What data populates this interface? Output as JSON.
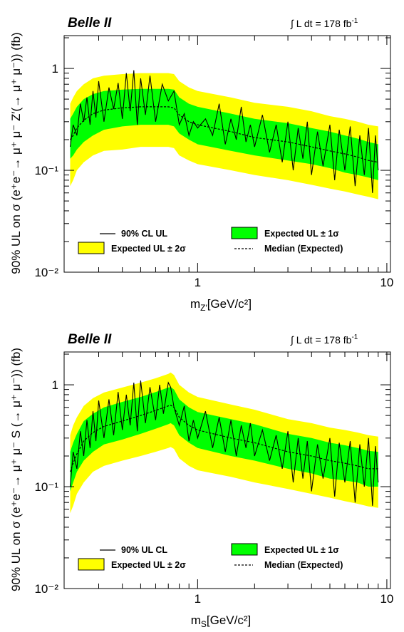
{
  "chart_data": [
    {
      "type": "area",
      "experiment_label": "Belle II",
      "luminosity_label": "∫ L dt = 178 fb",
      "luminosity_exponent": "-1",
      "ylabel": "90% UL on σ (e⁺e⁻→ μ⁺ μ⁻ Z′(→ μ⁺ μ⁻)) (fb)",
      "xlabel_main": "m",
      "xlabel_sub": "Z′",
      "xlabel_units": "[GeV/c²]",
      "x_scale": "log",
      "y_scale": "log",
      "xlim": [
        0.212,
        9.0
      ],
      "ylim": [
        0.01,
        2.0
      ],
      "x_ticks": [
        {
          "value": 1,
          "label": "1"
        },
        {
          "value": 10,
          "label": "10"
        }
      ],
      "y_ticks": [
        {
          "value": 0.01,
          "label": "10⁻²"
        },
        {
          "value": 0.1,
          "label": "10⁻¹"
        },
        {
          "value": 1,
          "label": "1"
        }
      ],
      "legend": {
        "placement": "bottom",
        "entries": [
          {
            "key": "observed",
            "label": "90% CL UL",
            "style": "line"
          },
          {
            "key": "pm1",
            "label": "Expected UL ± 1σ",
            "style": "band",
            "color": "#00ff00"
          },
          {
            "key": "pm2",
            "label": "Expected UL ± 2σ",
            "style": "band",
            "color": "#ffff00"
          },
          {
            "key": "median",
            "label": "Median (Expected)",
            "style": "dashed"
          }
        ]
      },
      "colors": {
        "band_2sigma": "#ffff00",
        "band_1sigma": "#00ff00",
        "observed": "#000000",
        "median": "#000000"
      },
      "expected": {
        "x": [
          0.212,
          0.22,
          0.23,
          0.25,
          0.28,
          0.32,
          0.4,
          0.5,
          0.6,
          0.7,
          0.75,
          0.8,
          0.9,
          1.0,
          1.5,
          2.0,
          3.0,
          4.0,
          5.0,
          6.0,
          7.0,
          8.0,
          9.0
        ],
        "median": [
          0.2,
          0.22,
          0.26,
          0.31,
          0.36,
          0.39,
          0.41,
          0.42,
          0.42,
          0.42,
          0.41,
          0.35,
          0.3,
          0.28,
          0.24,
          0.21,
          0.19,
          0.17,
          0.155,
          0.145,
          0.135,
          0.125,
          0.12
        ],
        "minus1": [
          0.13,
          0.14,
          0.16,
          0.19,
          0.22,
          0.25,
          0.27,
          0.28,
          0.28,
          0.28,
          0.27,
          0.23,
          0.2,
          0.18,
          0.155,
          0.14,
          0.125,
          0.115,
          0.105,
          0.095,
          0.09,
          0.085,
          0.08
        ],
        "plus1": [
          0.32,
          0.36,
          0.42,
          0.5,
          0.56,
          0.6,
          0.62,
          0.63,
          0.63,
          0.63,
          0.62,
          0.52,
          0.45,
          0.42,
          0.36,
          0.32,
          0.29,
          0.26,
          0.24,
          0.22,
          0.205,
          0.19,
          0.18
        ],
        "minus2": [
          0.07,
          0.08,
          0.1,
          0.12,
          0.14,
          0.155,
          0.16,
          0.17,
          0.17,
          0.17,
          0.165,
          0.14,
          0.125,
          0.115,
          0.1,
          0.09,
          0.08,
          0.072,
          0.066,
          0.062,
          0.058,
          0.055,
          0.052
        ],
        "plus2": [
          0.45,
          0.52,
          0.6,
          0.7,
          0.8,
          0.85,
          0.88,
          0.9,
          0.9,
          0.9,
          0.88,
          0.75,
          0.65,
          0.6,
          0.52,
          0.46,
          0.42,
          0.38,
          0.34,
          0.32,
          0.3,
          0.28,
          0.27
        ]
      },
      "observed": {
        "x": [
          0.212,
          0.22,
          0.23,
          0.24,
          0.25,
          0.26,
          0.27,
          0.28,
          0.29,
          0.3,
          0.32,
          0.34,
          0.36,
          0.38,
          0.4,
          0.42,
          0.44,
          0.46,
          0.48,
          0.5,
          0.53,
          0.56,
          0.6,
          0.65,
          0.7,
          0.75,
          0.8,
          0.85,
          0.9,
          0.95,
          1.0,
          1.1,
          1.2,
          1.3,
          1.4,
          1.5,
          1.6,
          1.7,
          1.8,
          1.9,
          2.0,
          2.2,
          2.4,
          2.6,
          2.8,
          3.0,
          3.2,
          3.4,
          3.6,
          3.8,
          4.0,
          4.3,
          4.6,
          5.0,
          5.3,
          5.6,
          6.0,
          6.4,
          6.8,
          7.2,
          7.6,
          8.0,
          8.4,
          8.7,
          9.0
        ],
        "y": [
          0.17,
          0.28,
          0.22,
          0.45,
          0.3,
          0.52,
          0.28,
          0.6,
          0.33,
          0.75,
          0.3,
          0.65,
          0.4,
          0.72,
          0.32,
          0.9,
          0.38,
          0.96,
          0.28,
          0.8,
          0.35,
          0.85,
          0.3,
          0.7,
          0.48,
          0.6,
          0.28,
          0.36,
          0.22,
          0.3,
          0.26,
          0.32,
          0.22,
          0.45,
          0.18,
          0.32,
          0.2,
          0.42,
          0.19,
          0.28,
          0.17,
          0.35,
          0.15,
          0.28,
          0.12,
          0.3,
          0.1,
          0.26,
          0.13,
          0.3,
          0.09,
          0.24,
          0.11,
          0.28,
          0.08,
          0.25,
          0.1,
          0.27,
          0.07,
          0.22,
          0.09,
          0.26,
          0.06,
          0.22,
          0.1
        ]
      }
    },
    {
      "type": "area",
      "experiment_label": "Belle II",
      "luminosity_label": "∫ L dt = 178 fb",
      "luminosity_exponent": "-1",
      "ylabel": "90% UL on σ (e⁺e⁻→ μ⁺ μ⁻ S (→ μ⁺ μ⁻)) (fb)",
      "xlabel_main": "m",
      "xlabel_sub": "S",
      "xlabel_units": "[GeV/c²]",
      "x_scale": "log",
      "y_scale": "log",
      "xlim": [
        0.212,
        9.0
      ],
      "ylim": [
        0.01,
        2.0
      ],
      "x_ticks": [
        {
          "value": 1,
          "label": "1"
        },
        {
          "value": 10,
          "label": "10"
        }
      ],
      "y_ticks": [
        {
          "value": 0.01,
          "label": "10⁻²"
        },
        {
          "value": 0.1,
          "label": "10⁻¹"
        },
        {
          "value": 1,
          "label": "1"
        }
      ],
      "legend": {
        "placement": "bottom",
        "entries": [
          {
            "key": "observed",
            "label": "90% UL CL",
            "style": "line"
          },
          {
            "key": "pm1",
            "label": "Expected UL ± 1σ",
            "style": "band",
            "color": "#00ff00"
          },
          {
            "key": "pm2",
            "label": "Expected UL ± 2σ",
            "style": "band",
            "color": "#ffff00"
          },
          {
            "key": "median",
            "label": "Median (Expected)",
            "style": "dashed"
          }
        ]
      },
      "colors": {
        "band_2sigma": "#ffff00",
        "band_1sigma": "#00ff00",
        "observed": "#000000",
        "median": "#000000"
      },
      "expected": {
        "x": [
          0.212,
          0.22,
          0.23,
          0.25,
          0.28,
          0.32,
          0.4,
          0.5,
          0.6,
          0.7,
          0.72,
          0.75,
          0.8,
          0.9,
          1.0,
          1.5,
          2.0,
          3.0,
          4.0,
          5.0,
          6.0,
          7.0,
          8.0,
          9.0
        ],
        "median": [
          0.14,
          0.17,
          0.21,
          0.28,
          0.34,
          0.39,
          0.44,
          0.5,
          0.56,
          0.62,
          0.63,
          0.6,
          0.48,
          0.4,
          0.36,
          0.3,
          0.27,
          0.22,
          0.2,
          0.18,
          0.17,
          0.16,
          0.15,
          0.15
        ],
        "minus1": [
          0.09,
          0.11,
          0.14,
          0.18,
          0.22,
          0.26,
          0.29,
          0.33,
          0.37,
          0.41,
          0.42,
          0.4,
          0.32,
          0.27,
          0.24,
          0.2,
          0.18,
          0.15,
          0.135,
          0.12,
          0.115,
          0.11,
          0.1,
          0.1
        ],
        "plus1": [
          0.22,
          0.27,
          0.33,
          0.44,
          0.52,
          0.6,
          0.68,
          0.76,
          0.85,
          0.94,
          0.95,
          0.9,
          0.72,
          0.6,
          0.54,
          0.46,
          0.41,
          0.33,
          0.3,
          0.27,
          0.255,
          0.24,
          0.225,
          0.22
        ],
        "minus2": [
          0.055,
          0.065,
          0.085,
          0.11,
          0.14,
          0.16,
          0.18,
          0.2,
          0.22,
          0.24,
          0.245,
          0.235,
          0.19,
          0.16,
          0.145,
          0.125,
          0.11,
          0.095,
          0.085,
          0.078,
          0.072,
          0.068,
          0.064,
          0.062
        ],
        "plus2": [
          0.32,
          0.4,
          0.48,
          0.62,
          0.74,
          0.84,
          0.94,
          1.05,
          1.16,
          1.28,
          1.32,
          1.25,
          1.0,
          0.84,
          0.76,
          0.64,
          0.57,
          0.46,
          0.42,
          0.38,
          0.36,
          0.34,
          0.32,
          0.31
        ]
      },
      "observed": {
        "x": [
          0.212,
          0.22,
          0.23,
          0.24,
          0.25,
          0.26,
          0.27,
          0.28,
          0.29,
          0.3,
          0.32,
          0.34,
          0.36,
          0.38,
          0.4,
          0.42,
          0.44,
          0.46,
          0.48,
          0.5,
          0.53,
          0.56,
          0.6,
          0.63,
          0.66,
          0.7,
          0.72,
          0.75,
          0.8,
          0.85,
          0.9,
          0.95,
          1.0,
          1.1,
          1.2,
          1.3,
          1.4,
          1.5,
          1.6,
          1.7,
          1.8,
          1.9,
          2.0,
          2.2,
          2.4,
          2.6,
          2.8,
          3.0,
          3.2,
          3.4,
          3.6,
          3.8,
          4.0,
          4.3,
          4.6,
          5.0,
          5.3,
          5.6,
          6.0,
          6.4,
          6.8,
          7.2,
          7.6,
          8.0,
          8.4,
          8.7,
          9.0
        ],
        "y": [
          0.1,
          0.22,
          0.15,
          0.35,
          0.2,
          0.45,
          0.24,
          0.55,
          0.28,
          0.7,
          0.3,
          0.72,
          0.32,
          0.85,
          0.36,
          0.8,
          0.4,
          1.05,
          0.35,
          1.1,
          0.42,
          0.95,
          0.45,
          1.0,
          0.52,
          1.05,
          0.95,
          0.6,
          0.4,
          0.62,
          0.28,
          0.45,
          0.3,
          0.55,
          0.24,
          0.48,
          0.22,
          0.45,
          0.2,
          0.4,
          0.24,
          0.42,
          0.2,
          0.36,
          0.18,
          0.32,
          0.15,
          0.35,
          0.11,
          0.3,
          0.12,
          0.28,
          0.09,
          0.26,
          0.12,
          0.3,
          0.08,
          0.27,
          0.11,
          0.28,
          0.07,
          0.26,
          0.1,
          0.3,
          0.065,
          0.25,
          0.11
        ]
      }
    }
  ]
}
